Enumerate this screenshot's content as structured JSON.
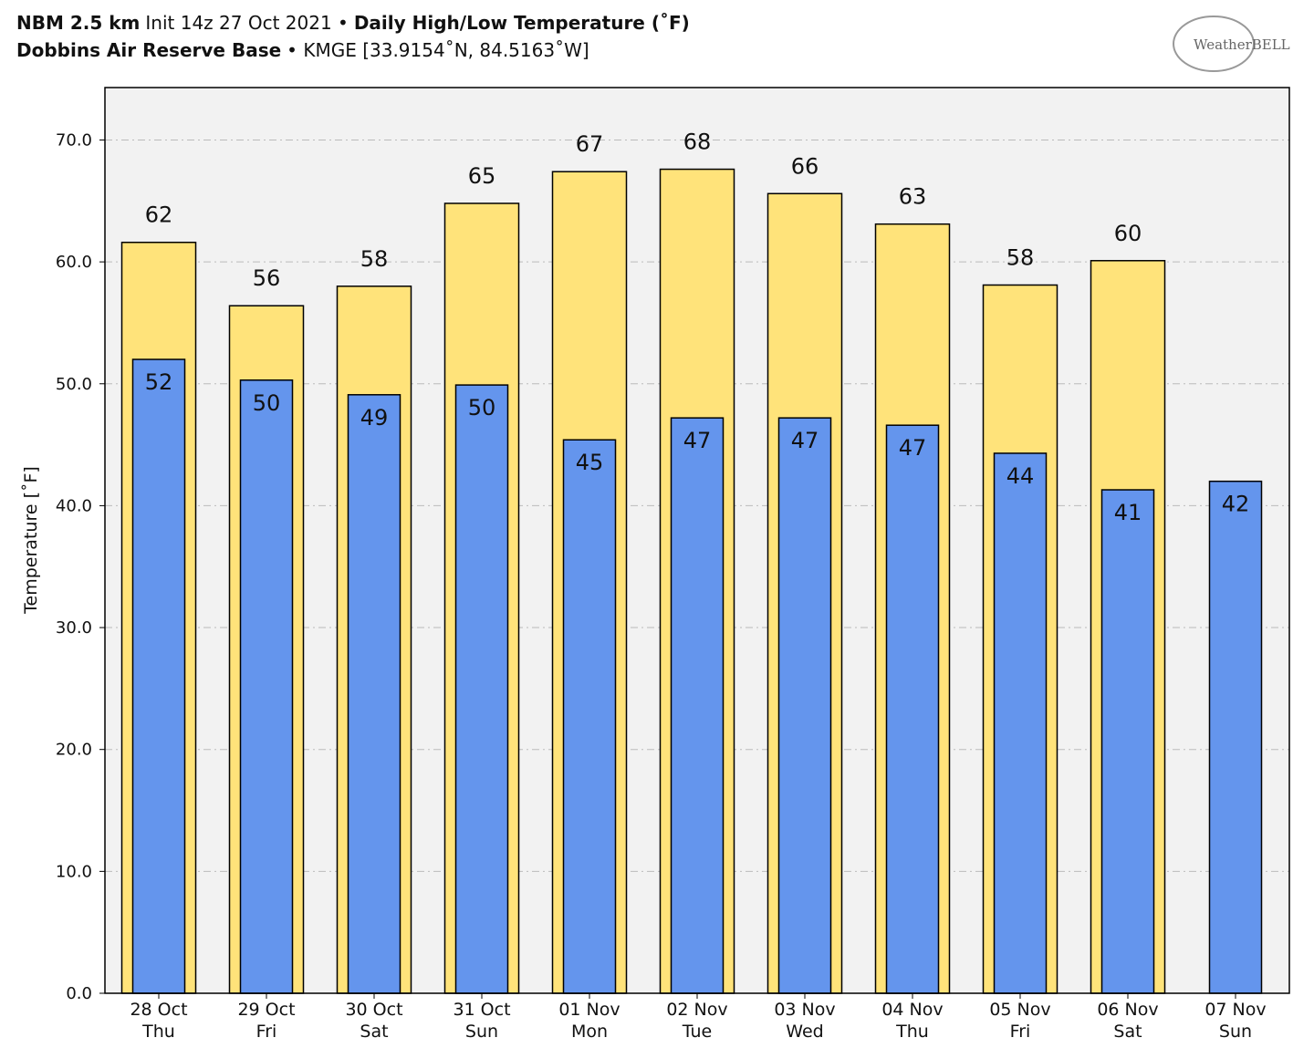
{
  "chart_data": {
    "type": "overlap-bar",
    "title_parts": [
      "NBM 2.5 km",
      "Init 14z 27 Oct 2021 •",
      "Daily High/Low Temperature (˚F)"
    ],
    "subtitle_parts": [
      "Dobbins Air Reserve Base",
      "• KMGE [33.9154˚N, 84.5163˚W]"
    ],
    "logo": "WeatherBELL",
    "y_label": "Temperature [˚F]",
    "categories": [
      "28 Oct",
      "29 Oct",
      "30 Oct",
      "31 Oct",
      "01 Nov",
      "02 Nov",
      "03 Nov",
      "04 Nov",
      "05 Nov",
      "06 Nov",
      "07 Nov"
    ],
    "weekdays": [
      "Thu",
      "Fri",
      "Sat",
      "Sun",
      "Mon",
      "Tue",
      "Wed",
      "Thu",
      "Fri",
      "Sat",
      "Sun"
    ],
    "series": [
      {
        "name": "High",
        "color": "#ffe37a",
        "values": [
          61.6,
          56.4,
          58.0,
          64.8,
          67.4,
          67.6,
          65.6,
          63.1,
          58.1,
          60.1,
          null
        ],
        "value_labels": [
          "62",
          "56",
          "58",
          "65",
          "67",
          "68",
          "66",
          "63",
          "58",
          "60",
          null
        ]
      },
      {
        "name": "Low",
        "color": "#6495ed",
        "values": [
          52.0,
          50.3,
          49.1,
          49.9,
          45.4,
          47.2,
          47.2,
          46.6,
          44.3,
          41.3,
          42.0
        ],
        "value_labels": [
          "52",
          "50",
          "49",
          "50",
          "45",
          "47",
          "47",
          "47",
          "44",
          "41",
          "42"
        ]
      }
    ],
    "ylim": [
      0,
      74.3
    ],
    "yticks": [
      {
        "value": 0,
        "label": "0.0"
      },
      {
        "value": 10,
        "label": "10.0"
      },
      {
        "value": 20,
        "label": "20.0"
      },
      {
        "value": 30,
        "label": "30.0"
      },
      {
        "value": 40,
        "label": "40.0"
      },
      {
        "value": 50,
        "label": "50.0"
      },
      {
        "value": 60,
        "label": "60.0"
      },
      {
        "value": 70,
        "label": "70.0"
      }
    ],
    "grid": true
  }
}
